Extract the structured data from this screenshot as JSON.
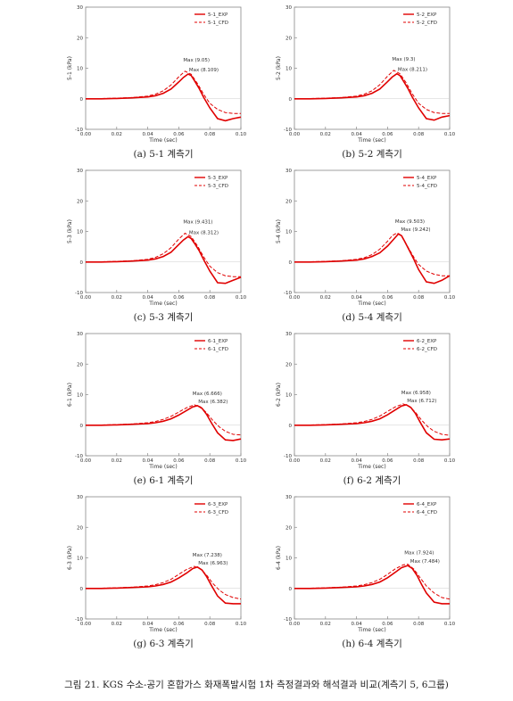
{
  "figure_caption": "그림 21. KGS 수소-공기 혼합가스 화재폭발시험 1차 측정결과와 해석결과 비교(계측기 5, 6그룹)",
  "colors": {
    "exp": "#e00000",
    "cfd": "#e00000",
    "axis": "#888888",
    "grid_text": "#333333"
  },
  "chart_data": [
    {
      "type": "line",
      "caption": "(a) 5-1 계측기",
      "ylabel": "5-1 (kPa)",
      "xlabel": "Time (sec)",
      "xlim": [
        0,
        0.1
      ],
      "ylim": [
        -10,
        30
      ],
      "xticks": [
        "0.00",
        "0.02",
        "0.04",
        "0.06",
        "0.08",
        "0.10"
      ],
      "yticks": [
        "-10",
        "0",
        "10",
        "20",
        "30"
      ],
      "legend_position": "top-right",
      "annotations": [
        {
          "text": "Max (9.05)",
          "x": 0.064,
          "y": 9.05
        },
        {
          "text": "Max (8.109)",
          "x": 0.066,
          "y": 8.109
        }
      ],
      "series": [
        {
          "name": "5-1_EXP",
          "style": "solid",
          "x": [
            0,
            0.01,
            0.02,
            0.03,
            0.04,
            0.045,
            0.05,
            0.055,
            0.06,
            0.063,
            0.066,
            0.068,
            0.07,
            0.073,
            0.076,
            0.08,
            0.085,
            0.09,
            0.095,
            0.1
          ],
          "y": [
            0,
            0,
            0.1,
            0.3,
            0.6,
            1.0,
            1.8,
            3.2,
            5.5,
            7.0,
            8.1,
            7.6,
            6.0,
            3.5,
            0.5,
            -3.0,
            -6.5,
            -7.2,
            -6.5,
            -6.0
          ]
        },
        {
          "name": "5-1_CFD",
          "style": "dashed",
          "x": [
            0,
            0.02,
            0.03,
            0.04,
            0.045,
            0.05,
            0.055,
            0.06,
            0.064,
            0.068,
            0.072,
            0.076,
            0.08,
            0.085,
            0.09,
            0.095,
            0.1
          ],
          "y": [
            0,
            0.2,
            0.4,
            0.9,
            1.5,
            2.6,
            4.5,
            7.2,
            9.05,
            8.0,
            5.0,
            1.5,
            -1.5,
            -3.5,
            -4.5,
            -4.8,
            -4.8
          ]
        }
      ]
    },
    {
      "type": "line",
      "caption": "(b) 5-2 계측기",
      "ylabel": "5-2 (kPa)",
      "xlabel": "Time (sec)",
      "xlim": [
        0,
        0.1
      ],
      "ylim": [
        -10,
        30
      ],
      "xticks": [
        "0.00",
        "0.02",
        "0.04",
        "0.06",
        "0.08",
        "0.10"
      ],
      "yticks": [
        "-10",
        "0",
        "10",
        "20",
        "30"
      ],
      "legend_position": "top-right",
      "annotations": [
        {
          "text": "Max (9.3)",
          "x": 0.064,
          "y": 9.3
        },
        {
          "text": "Max (8.211)",
          "x": 0.066,
          "y": 8.211
        }
      ],
      "series": [
        {
          "name": "5-2_EXP",
          "style": "solid",
          "x": [
            0,
            0.01,
            0.02,
            0.03,
            0.04,
            0.045,
            0.05,
            0.055,
            0.06,
            0.063,
            0.066,
            0.068,
            0.07,
            0.073,
            0.076,
            0.08,
            0.085,
            0.09,
            0.095,
            0.1
          ],
          "y": [
            0,
            0,
            0.1,
            0.3,
            0.6,
            1.0,
            1.8,
            3.2,
            5.6,
            7.1,
            8.2,
            7.6,
            6.0,
            3.5,
            0.5,
            -3.0,
            -6.5,
            -7.0,
            -6.0,
            -5.5
          ]
        },
        {
          "name": "5-2_CFD",
          "style": "dashed",
          "x": [
            0,
            0.02,
            0.03,
            0.04,
            0.045,
            0.05,
            0.055,
            0.06,
            0.064,
            0.068,
            0.072,
            0.076,
            0.08,
            0.085,
            0.09,
            0.095,
            0.1
          ],
          "y": [
            0,
            0.2,
            0.4,
            0.9,
            1.5,
            2.6,
            4.6,
            7.4,
            9.3,
            8.2,
            5.2,
            1.6,
            -1.5,
            -3.5,
            -4.5,
            -4.8,
            -4.8
          ]
        }
      ]
    },
    {
      "type": "line",
      "caption": "(c) 5-3 계측기",
      "ylabel": "5-3 (kPa)",
      "xlabel": "Time (sec)",
      "xlim": [
        0,
        0.1
      ],
      "ylim": [
        -10,
        30
      ],
      "xticks": [
        "0.00",
        "0.02",
        "0.04",
        "0.06",
        "0.08",
        "0.10"
      ],
      "yticks": [
        "-10",
        "0",
        "10",
        "20",
        "30"
      ],
      "legend_position": "top-right",
      "annotations": [
        {
          "text": "Max (9.431)",
          "x": 0.064,
          "y": 9.431
        },
        {
          "text": "Max (8.312)",
          "x": 0.066,
          "y": 8.312
        }
      ],
      "series": [
        {
          "name": "5-3_EXP",
          "style": "solid",
          "x": [
            0,
            0.01,
            0.02,
            0.03,
            0.04,
            0.045,
            0.05,
            0.055,
            0.06,
            0.063,
            0.066,
            0.068,
            0.07,
            0.073,
            0.076,
            0.08,
            0.085,
            0.09,
            0.095,
            0.1
          ],
          "y": [
            0,
            0,
            0.1,
            0.3,
            0.6,
            1.0,
            1.8,
            3.2,
            5.7,
            7.2,
            8.3,
            7.7,
            6.2,
            3.8,
            0.8,
            -3.0,
            -6.8,
            -7.0,
            -6.0,
            -5.0
          ]
        },
        {
          "name": "5-3_CFD",
          "style": "dashed",
          "x": [
            0,
            0.02,
            0.03,
            0.04,
            0.045,
            0.05,
            0.055,
            0.06,
            0.064,
            0.068,
            0.072,
            0.076,
            0.08,
            0.085,
            0.09,
            0.095,
            0.1
          ],
          "y": [
            0,
            0.2,
            0.4,
            0.9,
            1.5,
            2.7,
            4.7,
            7.5,
            9.43,
            8.3,
            5.3,
            1.7,
            -1.4,
            -3.5,
            -4.5,
            -4.8,
            -4.8
          ]
        }
      ]
    },
    {
      "type": "line",
      "caption": "(d) 5-4 계측기",
      "ylabel": "5-4 (kPa)",
      "xlabel": "Time (sec)",
      "xlim": [
        0,
        0.1
      ],
      "ylim": [
        -10,
        30
      ],
      "xticks": [
        "0.00",
        "0.02",
        "0.04",
        "0.06",
        "0.08",
        "0.10"
      ],
      "yticks": [
        "-10",
        "0",
        "10",
        "20",
        "30"
      ],
      "legend_position": "top-right",
      "annotations": [
        {
          "text": "Max (9.503)",
          "x": 0.066,
          "y": 9.503
        },
        {
          "text": "Max (9.242)",
          "x": 0.068,
          "y": 9.242
        }
      ],
      "series": [
        {
          "name": "5-4_EXP",
          "style": "solid",
          "x": [
            0,
            0.01,
            0.02,
            0.03,
            0.04,
            0.045,
            0.05,
            0.055,
            0.06,
            0.064,
            0.067,
            0.069,
            0.071,
            0.074,
            0.077,
            0.08,
            0.085,
            0.09,
            0.095,
            0.1
          ],
          "y": [
            0,
            0,
            0.1,
            0.3,
            0.6,
            1.0,
            1.8,
            3.0,
            5.2,
            7.5,
            9.2,
            8.6,
            6.8,
            3.8,
            0.8,
            -2.5,
            -6.5,
            -7.0,
            -6.0,
            -4.5
          ]
        },
        {
          "name": "5-4_CFD",
          "style": "dashed",
          "x": [
            0,
            0.02,
            0.03,
            0.04,
            0.045,
            0.05,
            0.055,
            0.06,
            0.063,
            0.066,
            0.069,
            0.073,
            0.077,
            0.08,
            0.085,
            0.09,
            0.095,
            0.1
          ],
          "y": [
            0,
            0.2,
            0.4,
            0.9,
            1.4,
            2.4,
            4.2,
            6.8,
            8.6,
            9.5,
            8.4,
            5.0,
            1.5,
            -0.8,
            -3.0,
            -4.0,
            -4.5,
            -4.5
          ]
        }
      ]
    },
    {
      "type": "line",
      "caption": "(e) 6-1 계측기",
      "ylabel": "6-1 (kPa)",
      "xlabel": "Time (sec)",
      "xlim": [
        0,
        0.1
      ],
      "ylim": [
        -10,
        30
      ],
      "xticks": [
        "0.00",
        "0.02",
        "0.04",
        "0.06",
        "0.08",
        "0.10"
      ],
      "yticks": [
        "-10",
        "0",
        "10",
        "20",
        "30"
      ],
      "legend_position": "top-right",
      "annotations": [
        {
          "text": "Max (6.666)",
          "x": 0.07,
          "y": 6.666
        },
        {
          "text": "Max (6.382)",
          "x": 0.072,
          "y": 6.382
        }
      ],
      "series": [
        {
          "name": "6-1_EXP",
          "style": "solid",
          "x": [
            0,
            0.01,
            0.02,
            0.03,
            0.04,
            0.045,
            0.05,
            0.055,
            0.06,
            0.065,
            0.069,
            0.072,
            0.075,
            0.078,
            0.081,
            0.085,
            0.09,
            0.095,
            0.1
          ],
          "y": [
            0,
            0,
            0.1,
            0.3,
            0.5,
            0.8,
            1.3,
            2.1,
            3.3,
            4.8,
            6.0,
            6.4,
            5.5,
            3.5,
            0.8,
            -2.5,
            -4.8,
            -5.0,
            -4.5
          ]
        },
        {
          "name": "6-1_CFD",
          "style": "dashed",
          "x": [
            0,
            0.02,
            0.03,
            0.04,
            0.045,
            0.05,
            0.055,
            0.06,
            0.065,
            0.07,
            0.074,
            0.078,
            0.082,
            0.086,
            0.09,
            0.095,
            0.1
          ],
          "y": [
            0,
            0.2,
            0.4,
            0.8,
            1.2,
            1.9,
            2.9,
            4.3,
            5.7,
            6.67,
            6.0,
            4.0,
            1.5,
            -0.5,
            -2.0,
            -3.0,
            -3.2
          ]
        }
      ]
    },
    {
      "type": "line",
      "caption": "(f) 6-2 계측기",
      "ylabel": "6-2 (kPa)",
      "xlabel": "Time (sec)",
      "xlim": [
        0,
        0.1
      ],
      "ylim": [
        -10,
        30
      ],
      "xticks": [
        "0.00",
        "0.02",
        "0.04",
        "0.06",
        "0.08",
        "0.10"
      ],
      "yticks": [
        "-10",
        "0",
        "10",
        "20",
        "30"
      ],
      "legend_position": "top-right",
      "annotations": [
        {
          "text": "Max (6.958)",
          "x": 0.07,
          "y": 6.958
        },
        {
          "text": "Max (6.712)",
          "x": 0.072,
          "y": 6.712
        }
      ],
      "series": [
        {
          "name": "6-2_EXP",
          "style": "solid",
          "x": [
            0,
            0.01,
            0.02,
            0.03,
            0.04,
            0.045,
            0.05,
            0.055,
            0.06,
            0.065,
            0.069,
            0.072,
            0.075,
            0.078,
            0.081,
            0.085,
            0.09,
            0.095,
            0.1
          ],
          "y": [
            0,
            0,
            0.1,
            0.3,
            0.5,
            0.8,
            1.3,
            2.1,
            3.4,
            5.0,
            6.3,
            6.7,
            5.8,
            3.8,
            1.0,
            -2.5,
            -4.6,
            -4.8,
            -4.5
          ]
        },
        {
          "name": "6-2_CFD",
          "style": "dashed",
          "x": [
            0,
            0.02,
            0.03,
            0.04,
            0.045,
            0.05,
            0.055,
            0.06,
            0.065,
            0.07,
            0.074,
            0.078,
            0.082,
            0.086,
            0.09,
            0.095,
            0.1
          ],
          "y": [
            0,
            0.2,
            0.4,
            0.8,
            1.2,
            1.9,
            3.0,
            4.5,
            6.0,
            6.96,
            6.2,
            4.2,
            1.6,
            -0.5,
            -2.0,
            -3.0,
            -3.3
          ]
        }
      ]
    },
    {
      "type": "line",
      "caption": "(g) 6-3 계측기",
      "ylabel": "6-3 (kPa)",
      "xlabel": "Time (sec)",
      "xlim": [
        0,
        0.1
      ],
      "ylim": [
        -10,
        30
      ],
      "xticks": [
        "0.00",
        "0.02",
        "0.04",
        "0.06",
        "0.08",
        "0.10"
      ],
      "yticks": [
        "-10",
        "0",
        "10",
        "20",
        "30"
      ],
      "legend_position": "top-right",
      "annotations": [
        {
          "text": "Max (7.238)",
          "x": 0.07,
          "y": 7.238
        },
        {
          "text": "Max (6.963)",
          "x": 0.072,
          "y": 6.963
        }
      ],
      "series": [
        {
          "name": "6-3_EXP",
          "style": "solid",
          "x": [
            0,
            0.01,
            0.02,
            0.03,
            0.04,
            0.045,
            0.05,
            0.055,
            0.06,
            0.065,
            0.069,
            0.072,
            0.075,
            0.078,
            0.081,
            0.085,
            0.09,
            0.095,
            0.1
          ],
          "y": [
            0,
            0,
            0.1,
            0.3,
            0.5,
            0.8,
            1.3,
            2.1,
            3.4,
            5.0,
            6.5,
            7.0,
            6.0,
            3.8,
            1.0,
            -2.5,
            -4.8,
            -5.0,
            -5.0
          ]
        },
        {
          "name": "6-3_CFD",
          "style": "dashed",
          "x": [
            0,
            0.02,
            0.03,
            0.04,
            0.045,
            0.05,
            0.055,
            0.06,
            0.065,
            0.07,
            0.074,
            0.078,
            0.082,
            0.086,
            0.09,
            0.095,
            0.1
          ],
          "y": [
            0,
            0.2,
            0.4,
            0.8,
            1.2,
            1.9,
            3.0,
            4.6,
            6.2,
            7.24,
            6.4,
            4.3,
            1.6,
            -0.5,
            -2.0,
            -3.0,
            -3.5
          ]
        }
      ]
    },
    {
      "type": "line",
      "caption": "(h) 6-4 계측기",
      "ylabel": "6-4 (kPa)",
      "xlabel": "Time (sec)",
      "xlim": [
        0,
        0.1
      ],
      "ylim": [
        -10,
        30
      ],
      "xticks": [
        "0.00",
        "0.02",
        "0.04",
        "0.06",
        "0.08",
        "0.10"
      ],
      "yticks": [
        "-10",
        "0",
        "10",
        "20",
        "30"
      ],
      "legend_position": "top-right",
      "annotations": [
        {
          "text": "Max (7.924)",
          "x": 0.072,
          "y": 7.924
        },
        {
          "text": "Max (7.484)",
          "x": 0.074,
          "y": 7.484
        }
      ],
      "series": [
        {
          "name": "6-4_EXP",
          "style": "solid",
          "x": [
            0,
            0.01,
            0.02,
            0.03,
            0.04,
            0.045,
            0.05,
            0.055,
            0.06,
            0.065,
            0.069,
            0.073,
            0.076,
            0.079,
            0.082,
            0.085,
            0.09,
            0.095,
            0.1
          ],
          "y": [
            0,
            0,
            0.1,
            0.3,
            0.5,
            0.8,
            1.3,
            2.1,
            3.5,
            5.3,
            6.8,
            7.5,
            6.5,
            4.2,
            1.2,
            -1.5,
            -4.5,
            -5.0,
            -5.0
          ]
        },
        {
          "name": "6-4_CFD",
          "style": "dashed",
          "x": [
            0,
            0.02,
            0.03,
            0.04,
            0.045,
            0.05,
            0.055,
            0.06,
            0.065,
            0.07,
            0.073,
            0.077,
            0.081,
            0.085,
            0.09,
            0.095,
            0.1
          ],
          "y": [
            0,
            0.2,
            0.4,
            0.8,
            1.2,
            1.9,
            3.0,
            4.6,
            6.4,
            7.7,
            7.92,
            6.3,
            3.5,
            0.8,
            -1.5,
            -3.0,
            -3.5
          ]
        }
      ]
    }
  ]
}
